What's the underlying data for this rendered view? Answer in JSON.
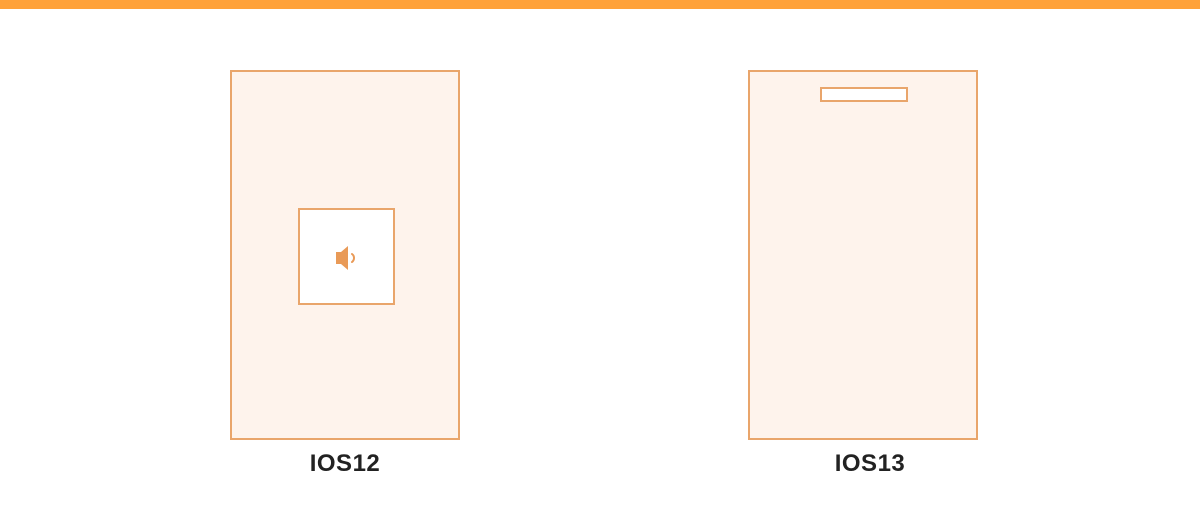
{
  "colors": {
    "accent": "#ffa23a",
    "outline": "#e9a56b",
    "screen_fill": "#fef3ec",
    "icon_fill": "#e99a57",
    "caption_text": "#222222"
  },
  "devices": [
    {
      "label": "IOS12",
      "volume_indicator": "centered-volume-hud",
      "icon": "speaker-icon"
    },
    {
      "label": "IOS13",
      "volume_indicator": "top-volume-bar"
    }
  ]
}
